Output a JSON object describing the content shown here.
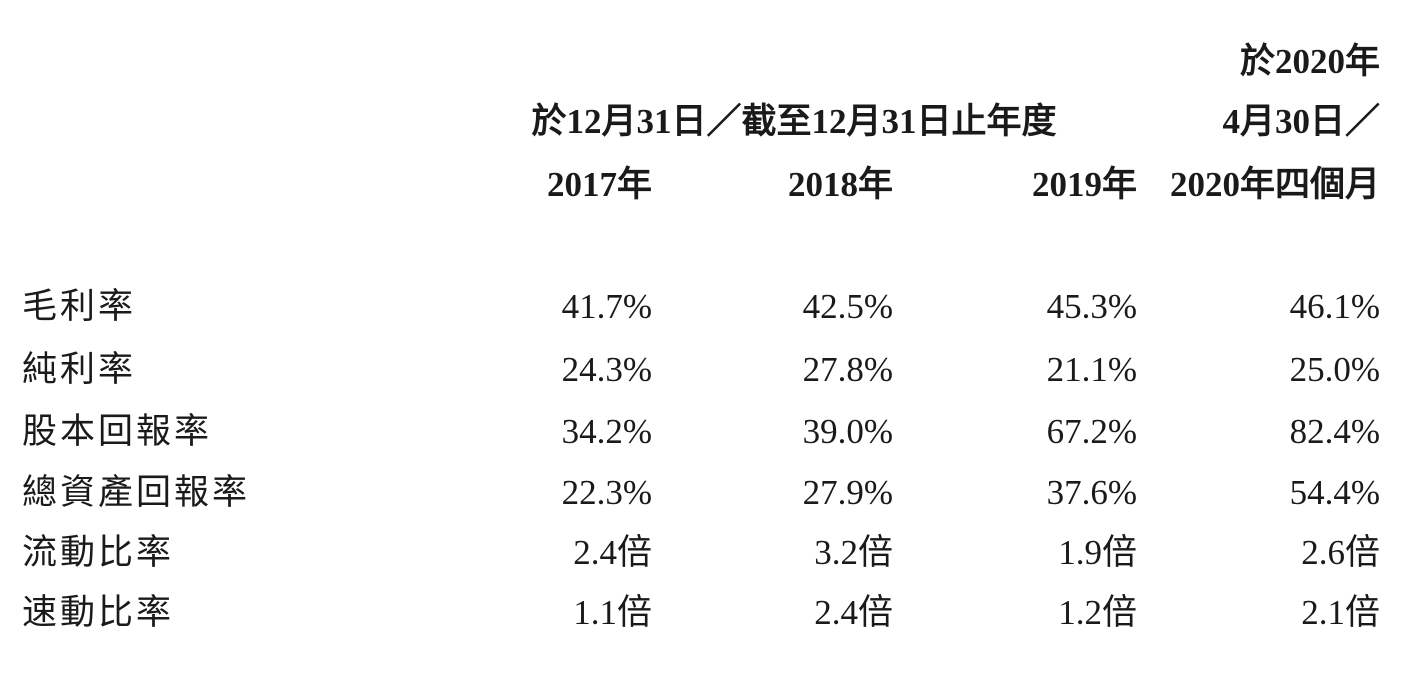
{
  "header": {
    "period_note_top": "於2020年",
    "group_title": "於12月31日／截至12月31日止年度",
    "period_note_bottom": "4月30日／",
    "columns": [
      "2017年",
      "2018年",
      "2019年",
      "2020年四個月"
    ]
  },
  "table": {
    "rows": [
      [
        "毛利率",
        "41.7%",
        "42.5%",
        "45.3%",
        "46.1%"
      ],
      [
        "純利率",
        "24.3%",
        "27.8%",
        "21.1%",
        "25.0%"
      ],
      [
        "股本回報率",
        "34.2%",
        "39.0%",
        "67.2%",
        "82.4%"
      ],
      [
        "總資產回報率",
        "22.3%",
        "27.9%",
        "37.6%",
        "54.4%"
      ],
      [
        "流動比率",
        "2.4倍",
        "3.2倍",
        "1.9倍",
        "2.6倍"
      ],
      [
        "速動比率",
        "1.1倍",
        "2.4倍",
        "1.2倍",
        "2.1倍"
      ]
    ]
  }
}
